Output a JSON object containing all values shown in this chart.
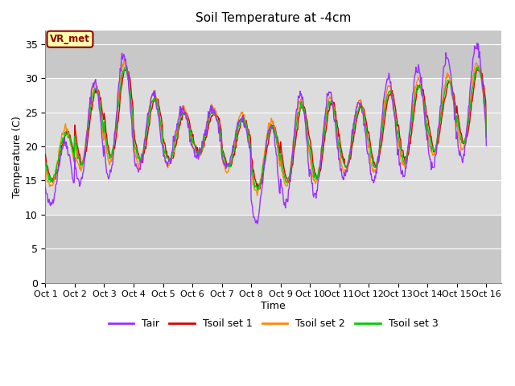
{
  "title": "Soil Temperature at -4cm",
  "xlabel": "Time",
  "ylabel": "Temperature (C)",
  "ylim": [
    0,
    37
  ],
  "yticks": [
    0,
    5,
    10,
    15,
    20,
    25,
    30,
    35
  ],
  "x_tick_labels": [
    "Oct 1",
    "Oct 2",
    "Oct 3",
    "Oct 4",
    "Oct 5",
    "Oct 6",
    "Oct 7",
    "Oct 8",
    "Oct 9",
    "Oct 10",
    "Oct 11",
    "Oct 12",
    "Oct 13",
    "Oct 14",
    "Oct 15",
    "Oct 16"
  ],
  "colors": {
    "Tair": "#9B30FF",
    "Tsoil1": "#DD0000",
    "Tsoil2": "#FF8800",
    "Tsoil3": "#00CC00"
  },
  "annotation_text": "VR_met",
  "annotation_bg": "#FFFFAA",
  "annotation_border": "#8B0000",
  "band_light": "#DCDCDC",
  "band_mid": "#C8C8C8",
  "background_fig": "#FFFFFF",
  "grid_color": "#FFFFFF",
  "legend_labels": [
    "Tair",
    "Tsoil set 1",
    "Tsoil set 2",
    "Tsoil set 3"
  ],
  "n_points": 721,
  "seed_air": 42,
  "seed_soil": 99
}
